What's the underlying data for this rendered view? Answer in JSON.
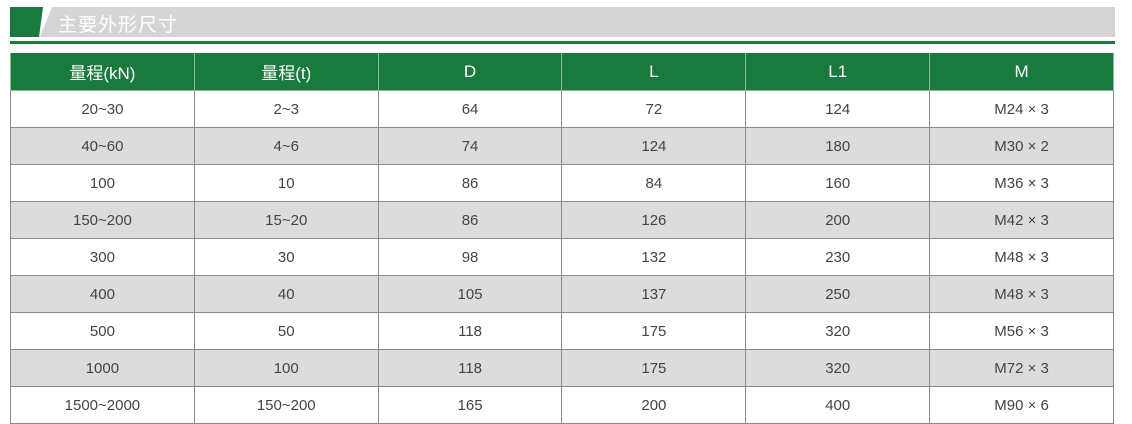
{
  "section_title": "主要外形尺寸",
  "colors": {
    "accent": "#1a7a3e",
    "row_alt": "#dcdcdc"
  },
  "table": {
    "headers": [
      "量程(kN)",
      "量程(t)",
      "D",
      "L",
      "L1",
      "M"
    ],
    "rows": [
      [
        "20~30",
        "2~3",
        "64",
        "72",
        "124",
        "M24 × 3"
      ],
      [
        "40~60",
        "4~6",
        "74",
        "124",
        "180",
        "M30 × 2"
      ],
      [
        "100",
        "10",
        "86",
        "84",
        "160",
        "M36 × 3"
      ],
      [
        "150~200",
        "15~20",
        "86",
        "126",
        "200",
        "M42 × 3"
      ],
      [
        "300",
        "30",
        "98",
        "132",
        "230",
        "M48 × 3"
      ],
      [
        "400",
        "40",
        "105",
        "137",
        "250",
        "M48 × 3"
      ],
      [
        "500",
        "50",
        "118",
        "175",
        "320",
        "M56 × 3"
      ],
      [
        "1000",
        "100",
        "118",
        "175",
        "320",
        "M72 × 3"
      ],
      [
        "1500~2000",
        "150~200",
        "165",
        "200",
        "400",
        "M90 × 6"
      ]
    ]
  }
}
